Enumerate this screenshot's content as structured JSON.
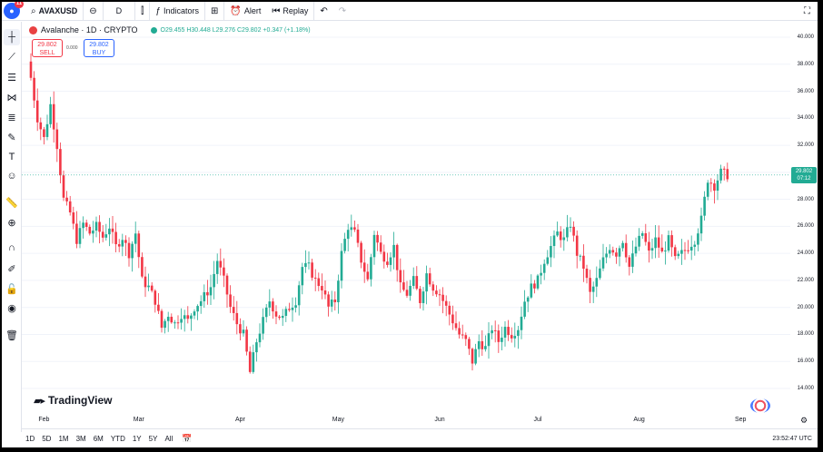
{
  "topbar": {
    "symbol": "AVAXUSD",
    "interval": "D",
    "indicators_label": "Indicators",
    "alert_label": "Alert",
    "replay_label": "Replay",
    "notification_count": "11"
  },
  "legend": {
    "title": "Avalanche · 1D · CRYPTO",
    "ohlc": "O29.455 H30.448 L29.276 C29.802 +0.347 (+1.18%)"
  },
  "trade": {
    "sell_price": "29.802",
    "sell_label": "SELL",
    "spread": "0.000",
    "buy_price": "29.802",
    "buy_label": "BUY"
  },
  "price_label": {
    "price": "29.802",
    "countdown": "07:12"
  },
  "brand": "TradingView",
  "bottombar": {
    "ranges": [
      "1D",
      "5D",
      "1M",
      "3M",
      "6M",
      "YTD",
      "1Y",
      "5Y",
      "All"
    ],
    "clock": "23:52:47 UTC"
  },
  "colors": {
    "up": "#22ab94",
    "down": "#f23645",
    "grid": "#f0f3fa",
    "accent": "#2962ff"
  },
  "left_tools": [
    "crosshair-icon",
    "trendline-icon",
    "horizontal-lines-icon",
    "pitchfork-icon",
    "fib-icon",
    "brush-icon",
    "text-icon",
    "emoji-icon",
    "ruler-icon",
    "zoom-in-icon",
    "magnet-icon",
    "lock-drawing-icon",
    "lock-icon",
    "eye-icon",
    "trash-icon"
  ],
  "chart_data": {
    "type": "candlestick",
    "symbol": "AVAXUSD",
    "interval": "1D",
    "y_ticks": [
      14.0,
      16.0,
      18.0,
      20.0,
      22.0,
      24.0,
      26.0,
      28.0,
      30.0,
      32.0,
      34.0,
      36.0,
      38.0,
      40.0
    ],
    "y_tick_labels": [
      "14.000",
      "16.000",
      "18.000",
      "20.000",
      "22.000",
      "24.000",
      "26.000",
      "28.000",
      "30.000",
      "32.000",
      "34.000",
      "36.000",
      "38.000",
      "40.000"
    ],
    "ylim": [
      13.5,
      40.5
    ],
    "x_labels": [
      {
        "label": "Feb",
        "index": 4
      },
      {
        "label": "Mar",
        "index": 33
      },
      {
        "label": "Apr",
        "index": 64
      },
      {
        "label": "May",
        "index": 94
      },
      {
        "label": "Jun",
        "index": 125
      },
      {
        "label": "Jul",
        "index": 155
      },
      {
        "label": "Aug",
        "index": 186
      },
      {
        "label": "Sep",
        "index": 217
      }
    ],
    "close_path": [
      {
        "i": 0,
        "v": 37.0
      },
      {
        "i": 2,
        "v": 34.0
      },
      {
        "i": 4,
        "v": 32.5
      },
      {
        "i": 6,
        "v": 35.0
      },
      {
        "i": 8,
        "v": 32.0
      },
      {
        "i": 10,
        "v": 28.0
      },
      {
        "i": 12,
        "v": 27.0
      },
      {
        "i": 14,
        "v": 25.0
      },
      {
        "i": 16,
        "v": 26.2
      },
      {
        "i": 18,
        "v": 25.5
      },
      {
        "i": 20,
        "v": 26.0
      },
      {
        "i": 22,
        "v": 25.2
      },
      {
        "i": 24,
        "v": 26.0
      },
      {
        "i": 26,
        "v": 24.5
      },
      {
        "i": 28,
        "v": 25.2
      },
      {
        "i": 30,
        "v": 24.0
      },
      {
        "i": 32,
        "v": 25.5
      },
      {
        "i": 34,
        "v": 22.0
      },
      {
        "i": 36,
        "v": 21.5
      },
      {
        "i": 38,
        "v": 20.5
      },
      {
        "i": 40,
        "v": 18.5
      },
      {
        "i": 42,
        "v": 19.5
      },
      {
        "i": 44,
        "v": 18.8
      },
      {
        "i": 46,
        "v": 19.5
      },
      {
        "i": 48,
        "v": 19.0
      },
      {
        "i": 50,
        "v": 20.0
      },
      {
        "i": 52,
        "v": 20.5
      },
      {
        "i": 55,
        "v": 21.5
      },
      {
        "i": 57,
        "v": 23.5
      },
      {
        "i": 59,
        "v": 22.0
      },
      {
        "i": 61,
        "v": 20.0
      },
      {
        "i": 63,
        "v": 18.8
      },
      {
        "i": 65,
        "v": 18.0
      },
      {
        "i": 67,
        "v": 15.2
      },
      {
        "i": 69,
        "v": 17.5
      },
      {
        "i": 71,
        "v": 19.0
      },
      {
        "i": 73,
        "v": 20.5
      },
      {
        "i": 75,
        "v": 19.5
      },
      {
        "i": 77,
        "v": 19.2
      },
      {
        "i": 79,
        "v": 20.0
      },
      {
        "i": 81,
        "v": 20.5
      },
      {
        "i": 83,
        "v": 23.0
      },
      {
        "i": 85,
        "v": 23.0
      },
      {
        "i": 87,
        "v": 22.0
      },
      {
        "i": 89,
        "v": 21.5
      },
      {
        "i": 91,
        "v": 20.0
      },
      {
        "i": 93,
        "v": 20.5
      },
      {
        "i": 95,
        "v": 24.0
      },
      {
        "i": 97,
        "v": 26.0
      },
      {
        "i": 99,
        "v": 25.5
      },
      {
        "i": 101,
        "v": 23.5
      },
      {
        "i": 103,
        "v": 22.0
      },
      {
        "i": 105,
        "v": 25.5
      },
      {
        "i": 107,
        "v": 24.0
      },
      {
        "i": 109,
        "v": 23.5
      },
      {
        "i": 111,
        "v": 24.5
      },
      {
        "i": 113,
        "v": 21.5
      },
      {
        "i": 115,
        "v": 21.0
      },
      {
        "i": 117,
        "v": 22.0
      },
      {
        "i": 119,
        "v": 20.5
      },
      {
        "i": 121,
        "v": 22.5
      },
      {
        "i": 123,
        "v": 21.5
      },
      {
        "i": 125,
        "v": 21.0
      },
      {
        "i": 127,
        "v": 20.0
      },
      {
        "i": 129,
        "v": 19.0
      },
      {
        "i": 131,
        "v": 18.0
      },
      {
        "i": 133,
        "v": 17.5
      },
      {
        "i": 135,
        "v": 16.0
      },
      {
        "i": 137,
        "v": 17.5
      },
      {
        "i": 139,
        "v": 17.0
      },
      {
        "i": 141,
        "v": 18.5
      },
      {
        "i": 143,
        "v": 17.5
      },
      {
        "i": 145,
        "v": 18.5
      },
      {
        "i": 147,
        "v": 18.0
      },
      {
        "i": 149,
        "v": 18.5
      },
      {
        "i": 151,
        "v": 20.5
      },
      {
        "i": 153,
        "v": 21.5
      },
      {
        "i": 155,
        "v": 22.0
      },
      {
        "i": 157,
        "v": 23.5
      },
      {
        "i": 159,
        "v": 24.5
      },
      {
        "i": 161,
        "v": 25.5
      },
      {
        "i": 163,
        "v": 25.0
      },
      {
        "i": 165,
        "v": 26.2
      },
      {
        "i": 167,
        "v": 24.0
      },
      {
        "i": 169,
        "v": 23.0
      },
      {
        "i": 171,
        "v": 21.0
      },
      {
        "i": 173,
        "v": 22.0
      },
      {
        "i": 175,
        "v": 23.5
      },
      {
        "i": 177,
        "v": 24.5
      },
      {
        "i": 179,
        "v": 24.0
      },
      {
        "i": 181,
        "v": 25.0
      },
      {
        "i": 183,
        "v": 23.0
      },
      {
        "i": 185,
        "v": 24.5
      },
      {
        "i": 187,
        "v": 25.5
      },
      {
        "i": 189,
        "v": 24.0
      },
      {
        "i": 191,
        "v": 25.0
      },
      {
        "i": 193,
        "v": 24.0
      },
      {
        "i": 195,
        "v": 25.0
      },
      {
        "i": 197,
        "v": 23.5
      },
      {
        "i": 199,
        "v": 24.0
      },
      {
        "i": 201,
        "v": 24.5
      },
      {
        "i": 203,
        "v": 25.0
      },
      {
        "i": 205,
        "v": 26.5
      },
      {
        "i": 207,
        "v": 29.5
      },
      {
        "i": 209,
        "v": 29.0
      },
      {
        "i": 211,
        "v": 30.0
      },
      {
        "i": 213,
        "v": 29.8
      }
    ],
    "last_price": 29.802
  }
}
